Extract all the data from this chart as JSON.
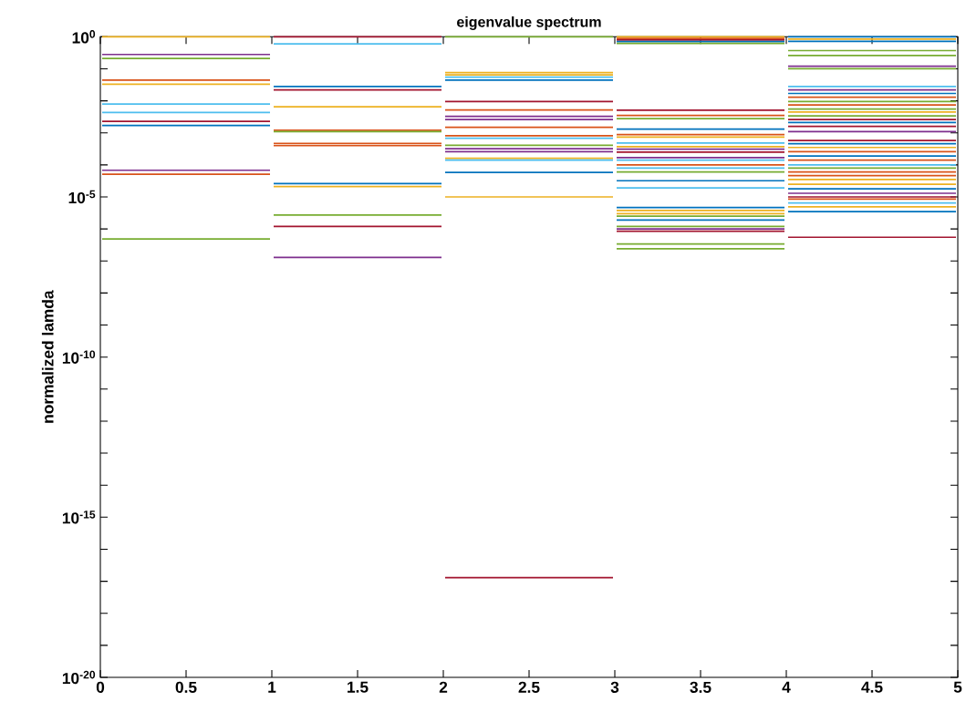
{
  "chart_data": {
    "type": "line",
    "title": "eigenvalue spectrum",
    "ylabel": "normalized lamda",
    "log": "y",
    "xlim": [
      0,
      5
    ],
    "ylim": [
      1e-20,
      1
    ],
    "xticks": [
      0,
      0.5,
      1,
      1.5,
      2,
      2.5,
      3,
      3.5,
      4,
      4.5,
      5
    ],
    "yticks": [
      {
        "value": 1e-20,
        "label": "10$^{-20}$"
      },
      {
        "value": 1e-19,
        "label": null
      },
      {
        "value": 1e-18,
        "label": null
      },
      {
        "value": 1e-17,
        "label": null
      },
      {
        "value": 1e-16,
        "label": null
      },
      {
        "value": 1e-15,
        "label": "10$^{-15}$"
      },
      {
        "value": 1e-14,
        "label": null
      },
      {
        "value": 1e-13,
        "label": null
      },
      {
        "value": 1e-12,
        "label": null
      },
      {
        "value": 1e-11,
        "label": null
      },
      {
        "value": 1e-10,
        "label": "10$^{-10}$"
      },
      {
        "value": 1e-09,
        "label": null
      },
      {
        "value": 1e-08,
        "label": null
      },
      {
        "value": 1e-07,
        "label": null
      },
      {
        "value": 1e-06,
        "label": null
      },
      {
        "value": 1e-05,
        "label": "10$^{-5}$"
      },
      {
        "value": 0.0001,
        "label": null
      },
      {
        "value": 0.001,
        "label": null
      },
      {
        "value": 0.01,
        "label": null
      },
      {
        "value": 0.1,
        "label": null
      },
      {
        "value": 1,
        "label": "10$^{0}$"
      }
    ],
    "series": [
      {
        "color": "#edb120",
        "x": [
          0,
          1
        ],
        "values": [
          1,
          1
        ]
      },
      {
        "color": "#7e2f8e",
        "x": [
          0,
          1
        ],
        "values": [
          0.28,
          0.28
        ]
      },
      {
        "color": "#77ac30",
        "x": [
          0,
          1
        ],
        "values": [
          0.21,
          0.21
        ]
      },
      {
        "color": "#d95319",
        "x": [
          0,
          1
        ],
        "values": [
          0.044,
          0.044
        ]
      },
      {
        "color": "#edb120",
        "x": [
          0,
          1
        ],
        "values": [
          0.033,
          0.033
        ]
      },
      {
        "color": "#4dbeee",
        "x": [
          0,
          1
        ],
        "values": [
          0.0079,
          0.0079
        ]
      },
      {
        "color": "#4dbeee",
        "x": [
          0,
          1
        ],
        "values": [
          0.0043,
          0.0043
        ]
      },
      {
        "color": "#a2142f",
        "x": [
          0,
          1
        ],
        "values": [
          0.0023,
          0.0023
        ]
      },
      {
        "color": "#0072bd",
        "x": [
          0,
          1
        ],
        "values": [
          0.0017,
          0.0017
        ]
      },
      {
        "color": "#7e2f8e",
        "x": [
          0,
          1
        ],
        "values": [
          6.8e-05,
          6.8e-05
        ]
      },
      {
        "color": "#d95319",
        "x": [
          0,
          1
        ],
        "values": [
          5.1e-05,
          5.1e-05
        ]
      },
      {
        "color": "#77ac30",
        "x": [
          0,
          1
        ],
        "values": [
          4.9e-07,
          4.9e-07
        ]
      },
      {
        "color": "#a2142f",
        "x": [
          1,
          2
        ],
        "values": [
          1,
          1
        ]
      },
      {
        "color": "#4dbeee",
        "x": [
          1,
          2
        ],
        "values": [
          0.6,
          0.6
        ]
      },
      {
        "color": "#0072bd",
        "x": [
          1,
          2
        ],
        "values": [
          0.028,
          0.028
        ]
      },
      {
        "color": "#a2142f",
        "x": [
          1,
          2
        ],
        "values": [
          0.022,
          0.022
        ]
      },
      {
        "color": "#edb120",
        "x": [
          1,
          2
        ],
        "values": [
          0.0065,
          0.0065
        ]
      },
      {
        "color": "#d95319",
        "x": [
          1,
          2
        ],
        "values": [
          0.0012,
          0.0012
        ]
      },
      {
        "color": "#77ac30",
        "x": [
          1,
          2
        ],
        "values": [
          0.0011,
          0.0011
        ]
      },
      {
        "color": "#d95319",
        "x": [
          1,
          2
        ],
        "values": [
          0.00047,
          0.00047
        ]
      },
      {
        "color": "#d95319",
        "x": [
          1,
          2
        ],
        "values": [
          0.0004,
          0.0004
        ]
      },
      {
        "color": "#0072bd",
        "x": [
          1,
          2
        ],
        "values": [
          2.6e-05,
          2.6e-05
        ]
      },
      {
        "color": "#edb120",
        "x": [
          1,
          2
        ],
        "values": [
          2.1e-05,
          2.1e-05
        ]
      },
      {
        "color": "#77ac30",
        "x": [
          1,
          2
        ],
        "values": [
          2.7e-06,
          2.7e-06
        ]
      },
      {
        "color": "#a2142f",
        "x": [
          1,
          2
        ],
        "values": [
          1.2e-06,
          1.2e-06
        ]
      },
      {
        "color": "#7e2f8e",
        "x": [
          1,
          2
        ],
        "values": [
          1.3e-07,
          1.3e-07
        ]
      },
      {
        "color": "#77ac30",
        "x": [
          2,
          3
        ],
        "values": [
          1,
          1
        ]
      },
      {
        "color": "#edb120",
        "x": [
          2,
          3
        ],
        "values": [
          0.076,
          0.076
        ]
      },
      {
        "color": "#edb120",
        "x": [
          2,
          3
        ],
        "values": [
          0.065,
          0.065
        ]
      },
      {
        "color": "#4dbeee",
        "x": [
          2,
          3
        ],
        "values": [
          0.055,
          0.055
        ]
      },
      {
        "color": "#0072bd",
        "x": [
          2,
          3
        ],
        "values": [
          0.044,
          0.044
        ]
      },
      {
        "color": "#a2142f",
        "x": [
          2,
          3
        ],
        "values": [
          0.0095,
          0.0095
        ]
      },
      {
        "color": "#d95319",
        "x": [
          2,
          3
        ],
        "values": [
          0.0052,
          0.0052
        ]
      },
      {
        "color": "#7e2f8e",
        "x": [
          2,
          3
        ],
        "values": [
          0.0033,
          0.0033
        ]
      },
      {
        "color": "#7e2f8e",
        "x": [
          2,
          3
        ],
        "values": [
          0.0026,
          0.0026
        ]
      },
      {
        "color": "#d95319",
        "x": [
          2,
          3
        ],
        "values": [
          0.0015,
          0.0015
        ]
      },
      {
        "color": "#d95319",
        "x": [
          2,
          3
        ],
        "values": [
          0.00081,
          0.00081
        ]
      },
      {
        "color": "#4dbeee",
        "x": [
          2,
          3
        ],
        "values": [
          0.00068,
          0.00068
        ]
      },
      {
        "color": "#77ac30",
        "x": [
          2,
          3
        ],
        "values": [
          0.00041,
          0.00041
        ]
      },
      {
        "color": "#7e2f8e",
        "x": [
          2,
          3
        ],
        "values": [
          0.00032,
          0.00032
        ]
      },
      {
        "color": "#7e2f8e",
        "x": [
          2,
          3
        ],
        "values": [
          0.00026,
          0.00026
        ]
      },
      {
        "color": "#edb120",
        "x": [
          2,
          3
        ],
        "values": [
          0.00016,
          0.00016
        ]
      },
      {
        "color": "#4dbeee",
        "x": [
          2,
          3
        ],
        "values": [
          0.00014,
          0.00014
        ]
      },
      {
        "color": "#0072bd",
        "x": [
          2,
          3
        ],
        "values": [
          5.8e-05,
          5.8e-05
        ]
      },
      {
        "color": "#edb120",
        "x": [
          2,
          3
        ],
        "values": [
          1e-05,
          1e-05
        ]
      },
      {
        "color": "#a2142f",
        "x": [
          2,
          3
        ],
        "values": [
          1.3e-17,
          1.3e-17
        ]
      },
      {
        "color": "#edb120",
        "x": [
          3,
          4
        ],
        "values": [
          1,
          1
        ]
      },
      {
        "color": "#d95319",
        "x": [
          3,
          4
        ],
        "values": [
          0.89,
          0.89
        ]
      },
      {
        "color": "#a2142f",
        "x": [
          3,
          4
        ],
        "values": [
          0.79,
          0.79
        ]
      },
      {
        "color": "#0072bd",
        "x": [
          3,
          4
        ],
        "values": [
          0.71,
          0.71
        ]
      },
      {
        "color": "#77ac30",
        "x": [
          3,
          4
        ],
        "values": [
          0.62,
          0.62
        ]
      },
      {
        "color": "#a2142f",
        "x": [
          3,
          4
        ],
        "values": [
          0.0051,
          0.0051
        ]
      },
      {
        "color": "#d95319",
        "x": [
          3,
          4
        ],
        "values": [
          0.0035,
          0.0035
        ]
      },
      {
        "color": "#77ac30",
        "x": [
          3,
          4
        ],
        "values": [
          0.0028,
          0.0028
        ]
      },
      {
        "color": "#0072bd",
        "x": [
          3,
          4
        ],
        "values": [
          0.0013,
          0.0013
        ]
      },
      {
        "color": "#d95319",
        "x": [
          3,
          4
        ],
        "values": [
          0.00089,
          0.00089
        ]
      },
      {
        "color": "#edb120",
        "x": [
          3,
          4
        ],
        "values": [
          0.00074,
          0.00074
        ]
      },
      {
        "color": "#4dbeee",
        "x": [
          3,
          4
        ],
        "values": [
          0.00048,
          0.00048
        ]
      },
      {
        "color": "#edb120",
        "x": [
          3,
          4
        ],
        "values": [
          0.00037,
          0.00037
        ]
      },
      {
        "color": "#7e2f8e",
        "x": [
          3,
          4
        ],
        "values": [
          0.00031,
          0.00031
        ]
      },
      {
        "color": "#a2142f",
        "x": [
          3,
          4
        ],
        "values": [
          0.00025,
          0.00025
        ]
      },
      {
        "color": "#7e2f8e",
        "x": [
          3,
          4
        ],
        "values": [
          0.00017,
          0.00017
        ]
      },
      {
        "color": "#4dbeee",
        "x": [
          3,
          4
        ],
        "values": [
          0.00014,
          0.00014
        ]
      },
      {
        "color": "#d95319",
        "x": [
          3,
          4
        ],
        "values": [
          0.0001,
          0.0001
        ]
      },
      {
        "color": "#4dbeee",
        "x": [
          3,
          4
        ],
        "values": [
          7.9e-05,
          7.9e-05
        ]
      },
      {
        "color": "#77ac30",
        "x": [
          3,
          4
        ],
        "values": [
          6e-05,
          6e-05
        ]
      },
      {
        "color": "#0072bd",
        "x": [
          3,
          4
        ],
        "values": [
          3.2e-05,
          3.2e-05
        ]
      },
      {
        "color": "#4dbeee",
        "x": [
          3,
          4
        ],
        "values": [
          1.9e-05,
          1.9e-05
        ]
      },
      {
        "color": "#0072bd",
        "x": [
          3,
          4
        ],
        "values": [
          4.7e-06,
          4.7e-06
        ]
      },
      {
        "color": "#edb120",
        "x": [
          3,
          4
        ],
        "values": [
          3.8e-06,
          3.8e-06
        ]
      },
      {
        "color": "#edb120",
        "x": [
          3,
          4
        ],
        "values": [
          3e-06,
          3e-06
        ]
      },
      {
        "color": "#77ac30",
        "x": [
          3,
          4
        ],
        "values": [
          2.5e-06,
          2.5e-06
        ]
      },
      {
        "color": "#0072bd",
        "x": [
          3,
          4
        ],
        "values": [
          1.9e-06,
          1.9e-06
        ]
      },
      {
        "color": "#77ac30",
        "x": [
          3,
          4
        ],
        "values": [
          1.2e-06,
          1.2e-06
        ]
      },
      {
        "color": "#7e2f8e",
        "x": [
          3,
          4
        ],
        "values": [
          1e-06,
          1e-06
        ]
      },
      {
        "color": "#a2142f",
        "x": [
          3,
          4
        ],
        "values": [
          8.5e-07,
          8.5e-07
        ]
      },
      {
        "color": "#77ac30",
        "x": [
          3,
          4
        ],
        "values": [
          3.4e-07,
          3.4e-07
        ]
      },
      {
        "color": "#77ac30",
        "x": [
          3,
          4
        ],
        "values": [
          2.4e-07,
          2.4e-07
        ]
      },
      {
        "color": "#0072bd",
        "x": [
          4,
          5
        ],
        "values": [
          1,
          1
        ]
      },
      {
        "color": "#edb120",
        "x": [
          4,
          5
        ],
        "values": [
          0.85,
          0.85
        ]
      },
      {
        "color": "#0072bd",
        "x": [
          4,
          5
        ],
        "values": [
          0.72,
          0.72
        ]
      },
      {
        "color": "#77ac30",
        "x": [
          4,
          5
        ],
        "values": [
          0.37,
          0.37
        ]
      },
      {
        "color": "#77ac30",
        "x": [
          4,
          5
        ],
        "values": [
          0.26,
          0.26
        ]
      },
      {
        "color": "#7e2f8e",
        "x": [
          4,
          5
        ],
        "values": [
          0.12,
          0.12
        ]
      },
      {
        "color": "#77ac30",
        "x": [
          4,
          5
        ],
        "values": [
          0.1,
          0.1
        ]
      },
      {
        "color": "#4dbeee",
        "x": [
          4,
          5
        ],
        "values": [
          0.028,
          0.028
        ]
      },
      {
        "color": "#7e2f8e",
        "x": [
          4,
          5
        ],
        "values": [
          0.022,
          0.022
        ]
      },
      {
        "color": "#0072bd",
        "x": [
          4,
          5
        ],
        "values": [
          0.017,
          0.017
        ]
      },
      {
        "color": "#d95319",
        "x": [
          4,
          5
        ],
        "values": [
          0.013,
          0.013
        ]
      },
      {
        "color": "#77ac30",
        "x": [
          4,
          5
        ],
        "values": [
          0.0095,
          0.0095
        ]
      },
      {
        "color": "#d95319",
        "x": [
          4,
          5
        ],
        "values": [
          0.0074,
          0.0074
        ]
      },
      {
        "color": "#77ac30",
        "x": [
          4,
          5
        ],
        "values": [
          0.0055,
          0.0055
        ]
      },
      {
        "color": "#edb120",
        "x": [
          4,
          5
        ],
        "values": [
          0.0045,
          0.0045
        ]
      },
      {
        "color": "#77ac30",
        "x": [
          4,
          5
        ],
        "values": [
          0.0034,
          0.0034
        ]
      },
      {
        "color": "#a2142f",
        "x": [
          4,
          5
        ],
        "values": [
          0.0026,
          0.0026
        ]
      },
      {
        "color": "#0072bd",
        "x": [
          4,
          5
        ],
        "values": [
          0.0021,
          0.0021
        ]
      },
      {
        "color": "#a2142f",
        "x": [
          4,
          5
        ],
        "values": [
          0.0016,
          0.0016
        ]
      },
      {
        "color": "#7e2f8e",
        "x": [
          4,
          5
        ],
        "values": [
          0.0011,
          0.0011
        ]
      },
      {
        "color": "#a2142f",
        "x": [
          4,
          5
        ],
        "values": [
          0.00058,
          0.00058
        ]
      },
      {
        "color": "#0072bd",
        "x": [
          4,
          5
        ],
        "values": [
          0.00046,
          0.00046
        ]
      },
      {
        "color": "#edb120",
        "x": [
          4,
          5
        ],
        "values": [
          0.00035,
          0.00035
        ]
      },
      {
        "color": "#d95319",
        "x": [
          4,
          5
        ],
        "values": [
          0.00026,
          0.00026
        ]
      },
      {
        "color": "#0072bd",
        "x": [
          4,
          5
        ],
        "values": [
          0.00019,
          0.00019
        ]
      },
      {
        "color": "#d95319",
        "x": [
          4,
          5
        ],
        "values": [
          0.00014,
          0.00014
        ]
      },
      {
        "color": "#4dbeee",
        "x": [
          4,
          5
        ],
        "values": [
          0.0001,
          0.0001
        ]
      },
      {
        "color": "#77ac30",
        "x": [
          4,
          5
        ],
        "values": [
          7.9e-05,
          7.9e-05
        ]
      },
      {
        "color": "#d95319",
        "x": [
          4,
          5
        ],
        "values": [
          6e-05,
          6e-05
        ]
      },
      {
        "color": "#d95319",
        "x": [
          4,
          5
        ],
        "values": [
          4.6e-05,
          4.6e-05
        ]
      },
      {
        "color": "#edb120",
        "x": [
          4,
          5
        ],
        "values": [
          3.5e-05,
          3.5e-05
        ]
      },
      {
        "color": "#edb120",
        "x": [
          4,
          5
        ],
        "values": [
          2.5e-05,
          2.5e-05
        ]
      },
      {
        "color": "#0072bd",
        "x": [
          4,
          5
        ],
        "values": [
          1.8e-05,
          1.8e-05
        ]
      },
      {
        "color": "#7e2f8e",
        "x": [
          4,
          5
        ],
        "values": [
          1.3e-05,
          1.3e-05
        ]
      },
      {
        "color": "#a2142f",
        "x": [
          4,
          5
        ],
        "values": [
          1e-05,
          1e-05
        ]
      },
      {
        "color": "#d95319",
        "x": [
          4,
          5
        ],
        "values": [
          8.5e-06,
          8.5e-06
        ]
      },
      {
        "color": "#4dbeee",
        "x": [
          4,
          5
        ],
        "values": [
          6.5e-06,
          6.5e-06
        ]
      },
      {
        "color": "#edb120",
        "x": [
          4,
          5
        ],
        "values": [
          4.9e-06,
          4.9e-06
        ]
      },
      {
        "color": "#0072bd",
        "x": [
          4,
          5
        ],
        "values": [
          3.5e-06,
          3.5e-06
        ]
      },
      {
        "color": "#a2142f",
        "x": [
          4,
          5
        ],
        "values": [
          5.5e-07,
          5.5e-07
        ]
      }
    ]
  }
}
